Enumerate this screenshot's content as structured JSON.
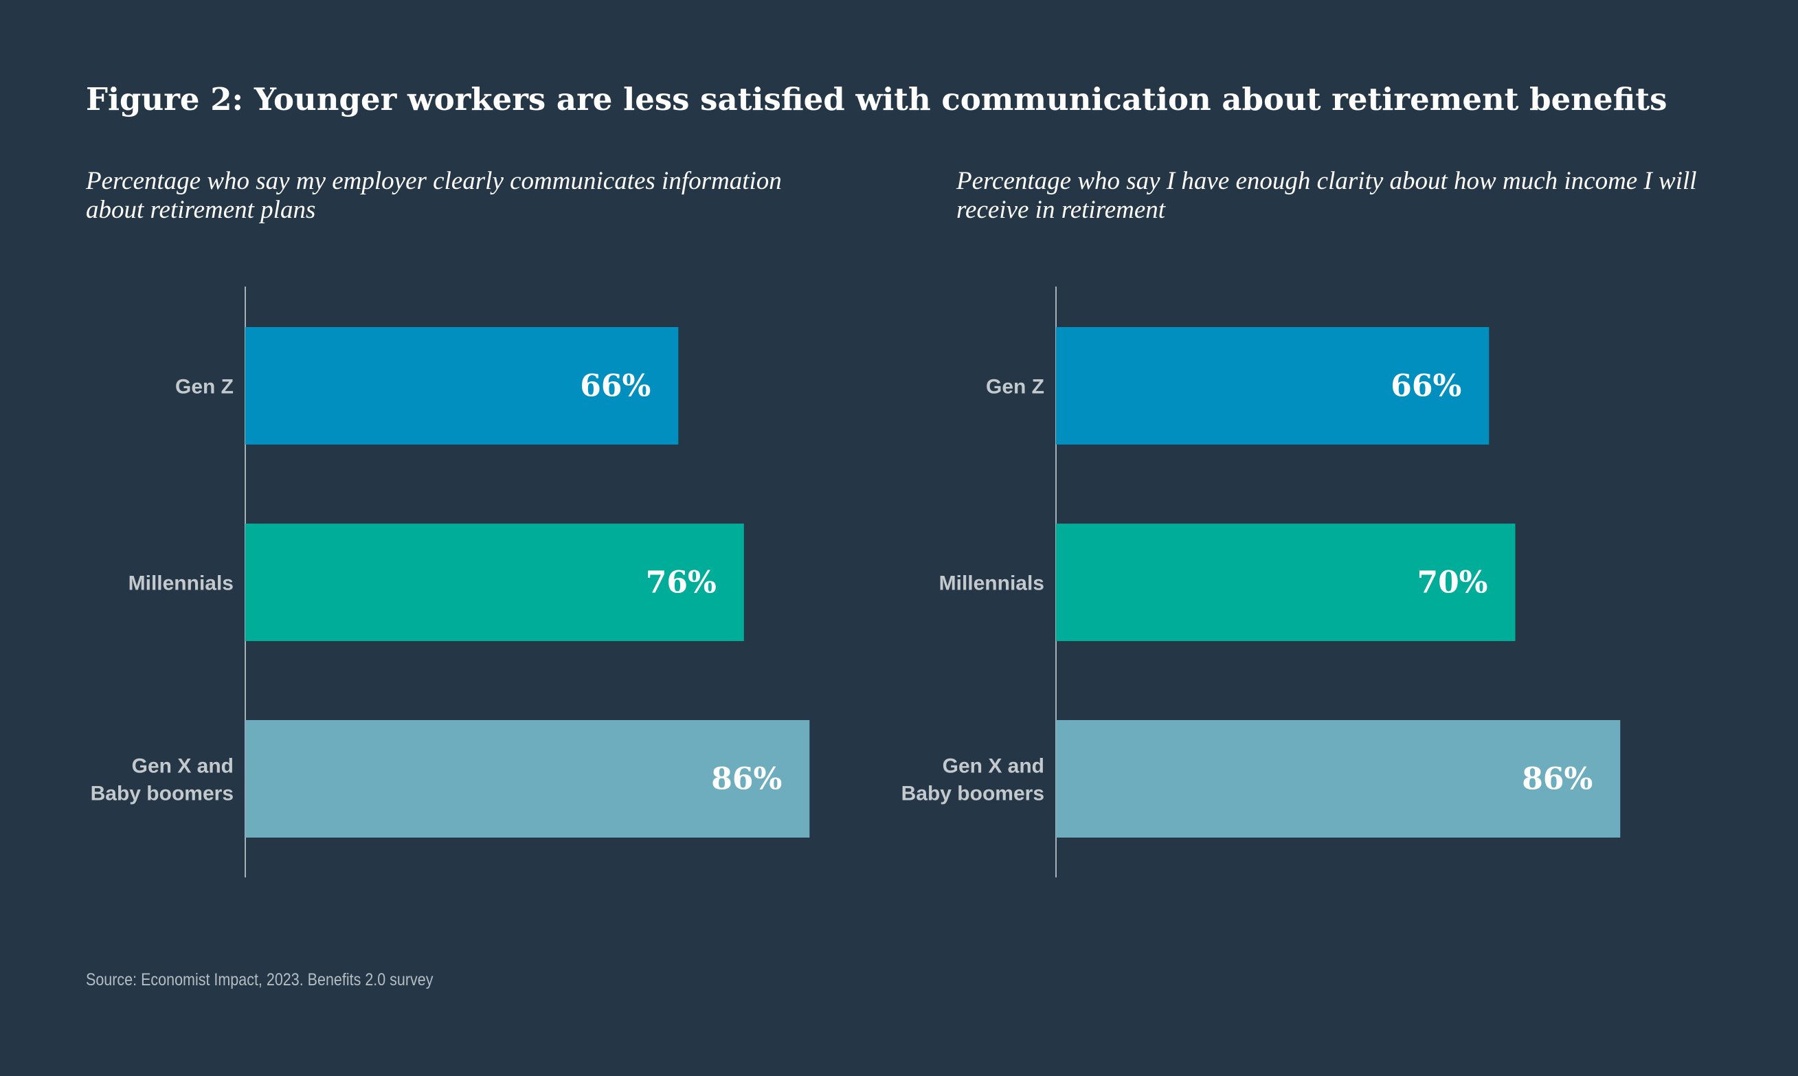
{
  "title": "Figure 2: Younger workers are less satisfied with communication about retirement benefits",
  "source": "Source: Economist Impact, 2023. Benefits 2.0 survey",
  "colors": {
    "background": "#253746",
    "gen_z": "#008fbf",
    "millennials": "#00ad99",
    "gen_x_boomers": "#6eadbd",
    "axis": "#a9b1b8"
  },
  "chart_data": [
    {
      "type": "bar",
      "orientation": "horizontal",
      "title": "Percentage who say my employer clearly communicates information about retirement plans",
      "categories": [
        [
          "Gen Z"
        ],
        [
          "Millennials"
        ],
        [
          "Gen X and",
          "Baby boomers"
        ]
      ],
      "values": [
        66,
        76,
        86
      ],
      "value_labels": [
        "66%",
        "76%",
        "86%"
      ],
      "bar_colors": [
        "#008fbf",
        "#00ad99",
        "#6eadbd"
      ],
      "xlim": [
        0,
        100
      ],
      "xlabel": "",
      "ylabel": "",
      "grid": false
    },
    {
      "type": "bar",
      "orientation": "horizontal",
      "title": "Percentage who say I have enough clarity about how much income I will receive in retirement",
      "categories": [
        [
          "Gen Z"
        ],
        [
          "Millennials"
        ],
        [
          "Gen X and",
          "Baby boomers"
        ]
      ],
      "values": [
        66,
        70,
        86
      ],
      "value_labels": [
        "66%",
        "70%",
        "86%"
      ],
      "bar_colors": [
        "#008fbf",
        "#00ad99",
        "#6eadbd"
      ],
      "xlim": [
        0,
        100
      ],
      "xlabel": "",
      "ylabel": "",
      "grid": false
    }
  ]
}
